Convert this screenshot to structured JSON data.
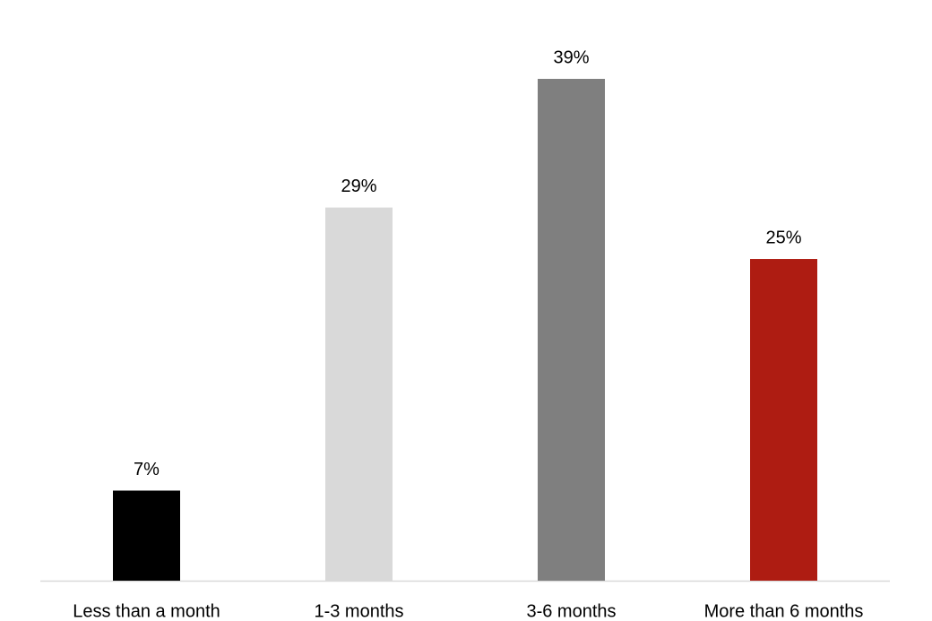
{
  "chart_data": {
    "type": "bar",
    "categories": [
      "Less than a month",
      "1-3 months",
      "3-6 months",
      "More than 6 months"
    ],
    "values": [
      7,
      29,
      39,
      25
    ],
    "value_labels": [
      "7%",
      "29%",
      "39%",
      "25%"
    ],
    "colors": [
      "#000000",
      "#d9d9d9",
      "#7f7f7f",
      "#ae1c12"
    ]
  }
}
